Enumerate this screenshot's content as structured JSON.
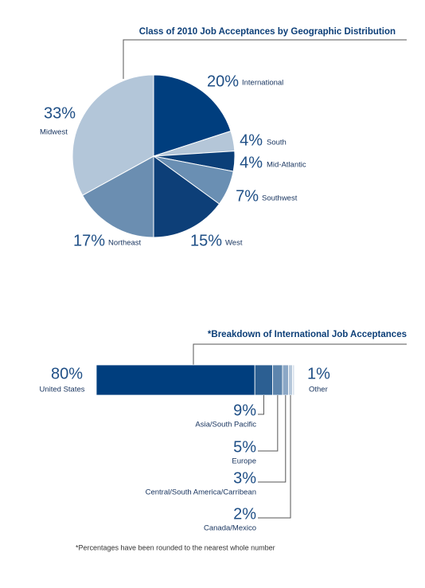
{
  "chart_data": [
    {
      "type": "pie",
      "title": "Class of 2010 Job Acceptances by Geographic Distribution",
      "categories": [
        "International",
        "South",
        "Mid-Atlantic",
        "Southwest",
        "West",
        "Northeast",
        "Midwest"
      ],
      "values": [
        20,
        4,
        4,
        7,
        15,
        17,
        33
      ],
      "value_labels": [
        "20%",
        "4%",
        "4%",
        "7%",
        "15%",
        "17%",
        "33%"
      ],
      "colors": [
        "#003e7e",
        "#b4c6d8",
        "#0b3f78",
        "#6a8fb3",
        "#0d3f78",
        "#6b8eb1",
        "#b3c6d9"
      ]
    },
    {
      "type": "stacked_bar",
      "title": "*Breakdown of International Job Acceptances",
      "categories": [
        "United States",
        "Asia/South Pacific",
        "Europe",
        "Central/South America/Carribean",
        "Canada/Mexico",
        "Other"
      ],
      "values": [
        80,
        9,
        5,
        3,
        2,
        1
      ],
      "value_labels": [
        "80%",
        "9%",
        "5%",
        "3%",
        "2%",
        "1%"
      ],
      "colors": [
        "#003e7e",
        "#2c5f92",
        "#5d85ad",
        "#8ba7c6",
        "#b5c7da",
        "#d9e2ec"
      ],
      "footnote": "*Percentages have been rounded to the nearest whole number"
    }
  ]
}
